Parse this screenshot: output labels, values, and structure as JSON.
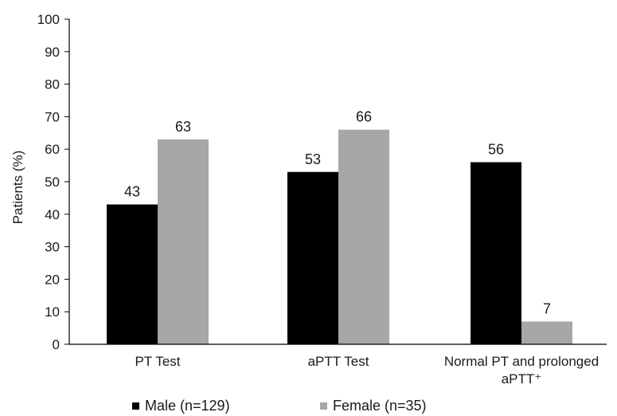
{
  "chart_data": {
    "type": "bar",
    "ylabel": "Patients (%)",
    "xlabel": "",
    "ylim": [
      0,
      100
    ],
    "yticks": [
      0,
      10,
      20,
      30,
      40,
      50,
      60,
      70,
      80,
      90,
      100
    ],
    "categories": [
      [
        "PT Test"
      ],
      [
        "aPTT Test"
      ],
      [
        "Normal PT and prolonged",
        "aPTT⁺"
      ]
    ],
    "series": [
      {
        "name": "Male (n=129)",
        "color": "#000000",
        "values": [
          43,
          53,
          56
        ]
      },
      {
        "name": "Female (n=35)",
        "color": "#a8a6a6",
        "values": [
          63,
          66,
          7
        ]
      }
    ],
    "grid": false,
    "legend_position": "bottom"
  }
}
